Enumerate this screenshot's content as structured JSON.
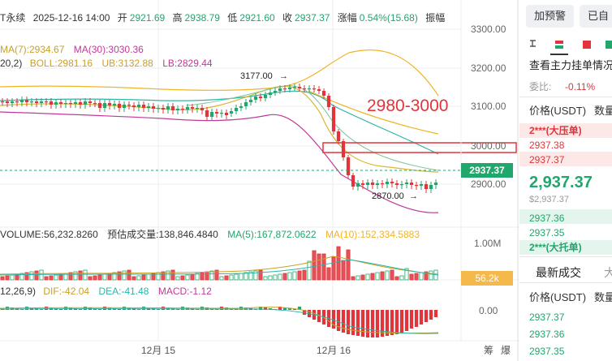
{
  "header": {
    "symbol": "T永续",
    "datetime": "2025-12-16 14:00",
    "open_label": "开",
    "open": "2921.69",
    "high_label": "高",
    "high": "2938.79",
    "low_label": "低",
    "low": "2921.60",
    "close_label": "收",
    "close": "2937.37",
    "change_label": "涨幅",
    "change": "0.54%(15.68)",
    "amp_label": "振幅"
  },
  "ma_line": {
    "ma7": "MA(7):2934.67",
    "ma30": "MA(30):3030.36"
  },
  "boll_line": {
    "params": "20,2)",
    "boll": "BOLL:2981.16",
    "ub": "UB:3132.88",
    "lb": "LB:2829.44"
  },
  "annotations": {
    "high_mark": "3177.00",
    "low_mark": "2870.00",
    "zone_text": "2980-3000"
  },
  "price_axis": [
    "3300.00",
    "3200.00",
    "3100.00",
    "3000.00",
    "2900.00"
  ],
  "current_price_tag": "2937.37",
  "volume_line": {
    "volume": "VOLUME:56,232.8260",
    "est_label": "预估成交量:",
    "est": "138,846.4840",
    "ma5": "MA(5):167,872.0622",
    "ma10": "MA(10):152,334.5883"
  },
  "volume_axis": [
    "1.00M"
  ],
  "volume_tag": "56.2k",
  "macd_line": {
    "params": "12,26,9)",
    "dif": "DIF:-42.04",
    "dea": "DEA:-41.48",
    "macd": "MACD:-1.12"
  },
  "macd_axis": [
    "0.00"
  ],
  "x_axis": [
    "12月 15",
    "12月 16"
  ],
  "corner_labels": {
    "a": "筹",
    "b": "爆"
  },
  "right_panel": {
    "btn_alert": "加预警",
    "btn_selected": "已自选",
    "orderbook_title": "查看主力挂单情况",
    "ratio_label": "委比:",
    "ratio_value": "-0.11%",
    "col_price": "价格(USDT)",
    "col_qty": "数量",
    "big_ask": "2***(大压单)",
    "asks": [
      "2937.38",
      "2937.37"
    ],
    "last_price": "2,937.37",
    "last_price_sub": "$2,937.37",
    "bids": [
      "2937.36",
      "2937.35"
    ],
    "big_bid": "2***(大托单)",
    "tab_trades": "最新成交",
    "tab_other": "大",
    "trades_col_price": "价格(USDT)",
    "trades_col_qty": "数量",
    "trades": [
      "2937.37",
      "2937.36",
      "2937.35"
    ]
  },
  "colors": {
    "up": "#21a66b",
    "down": "#e2343a",
    "ma7": "#c8a02a",
    "ma30": "#2bb5a8",
    "boll_up": "#f0b429",
    "boll_mid": "#2bb5a8",
    "boll_low": "#c0399a"
  },
  "chart_data": {
    "type": "candlestick",
    "y_range": [
      2800,
      3330
    ],
    "candles_note": "4h-style candles across 12月15 – 12月16",
    "closes_sample": [
      3177.0,
      2870.0,
      2937.37
    ]
  }
}
